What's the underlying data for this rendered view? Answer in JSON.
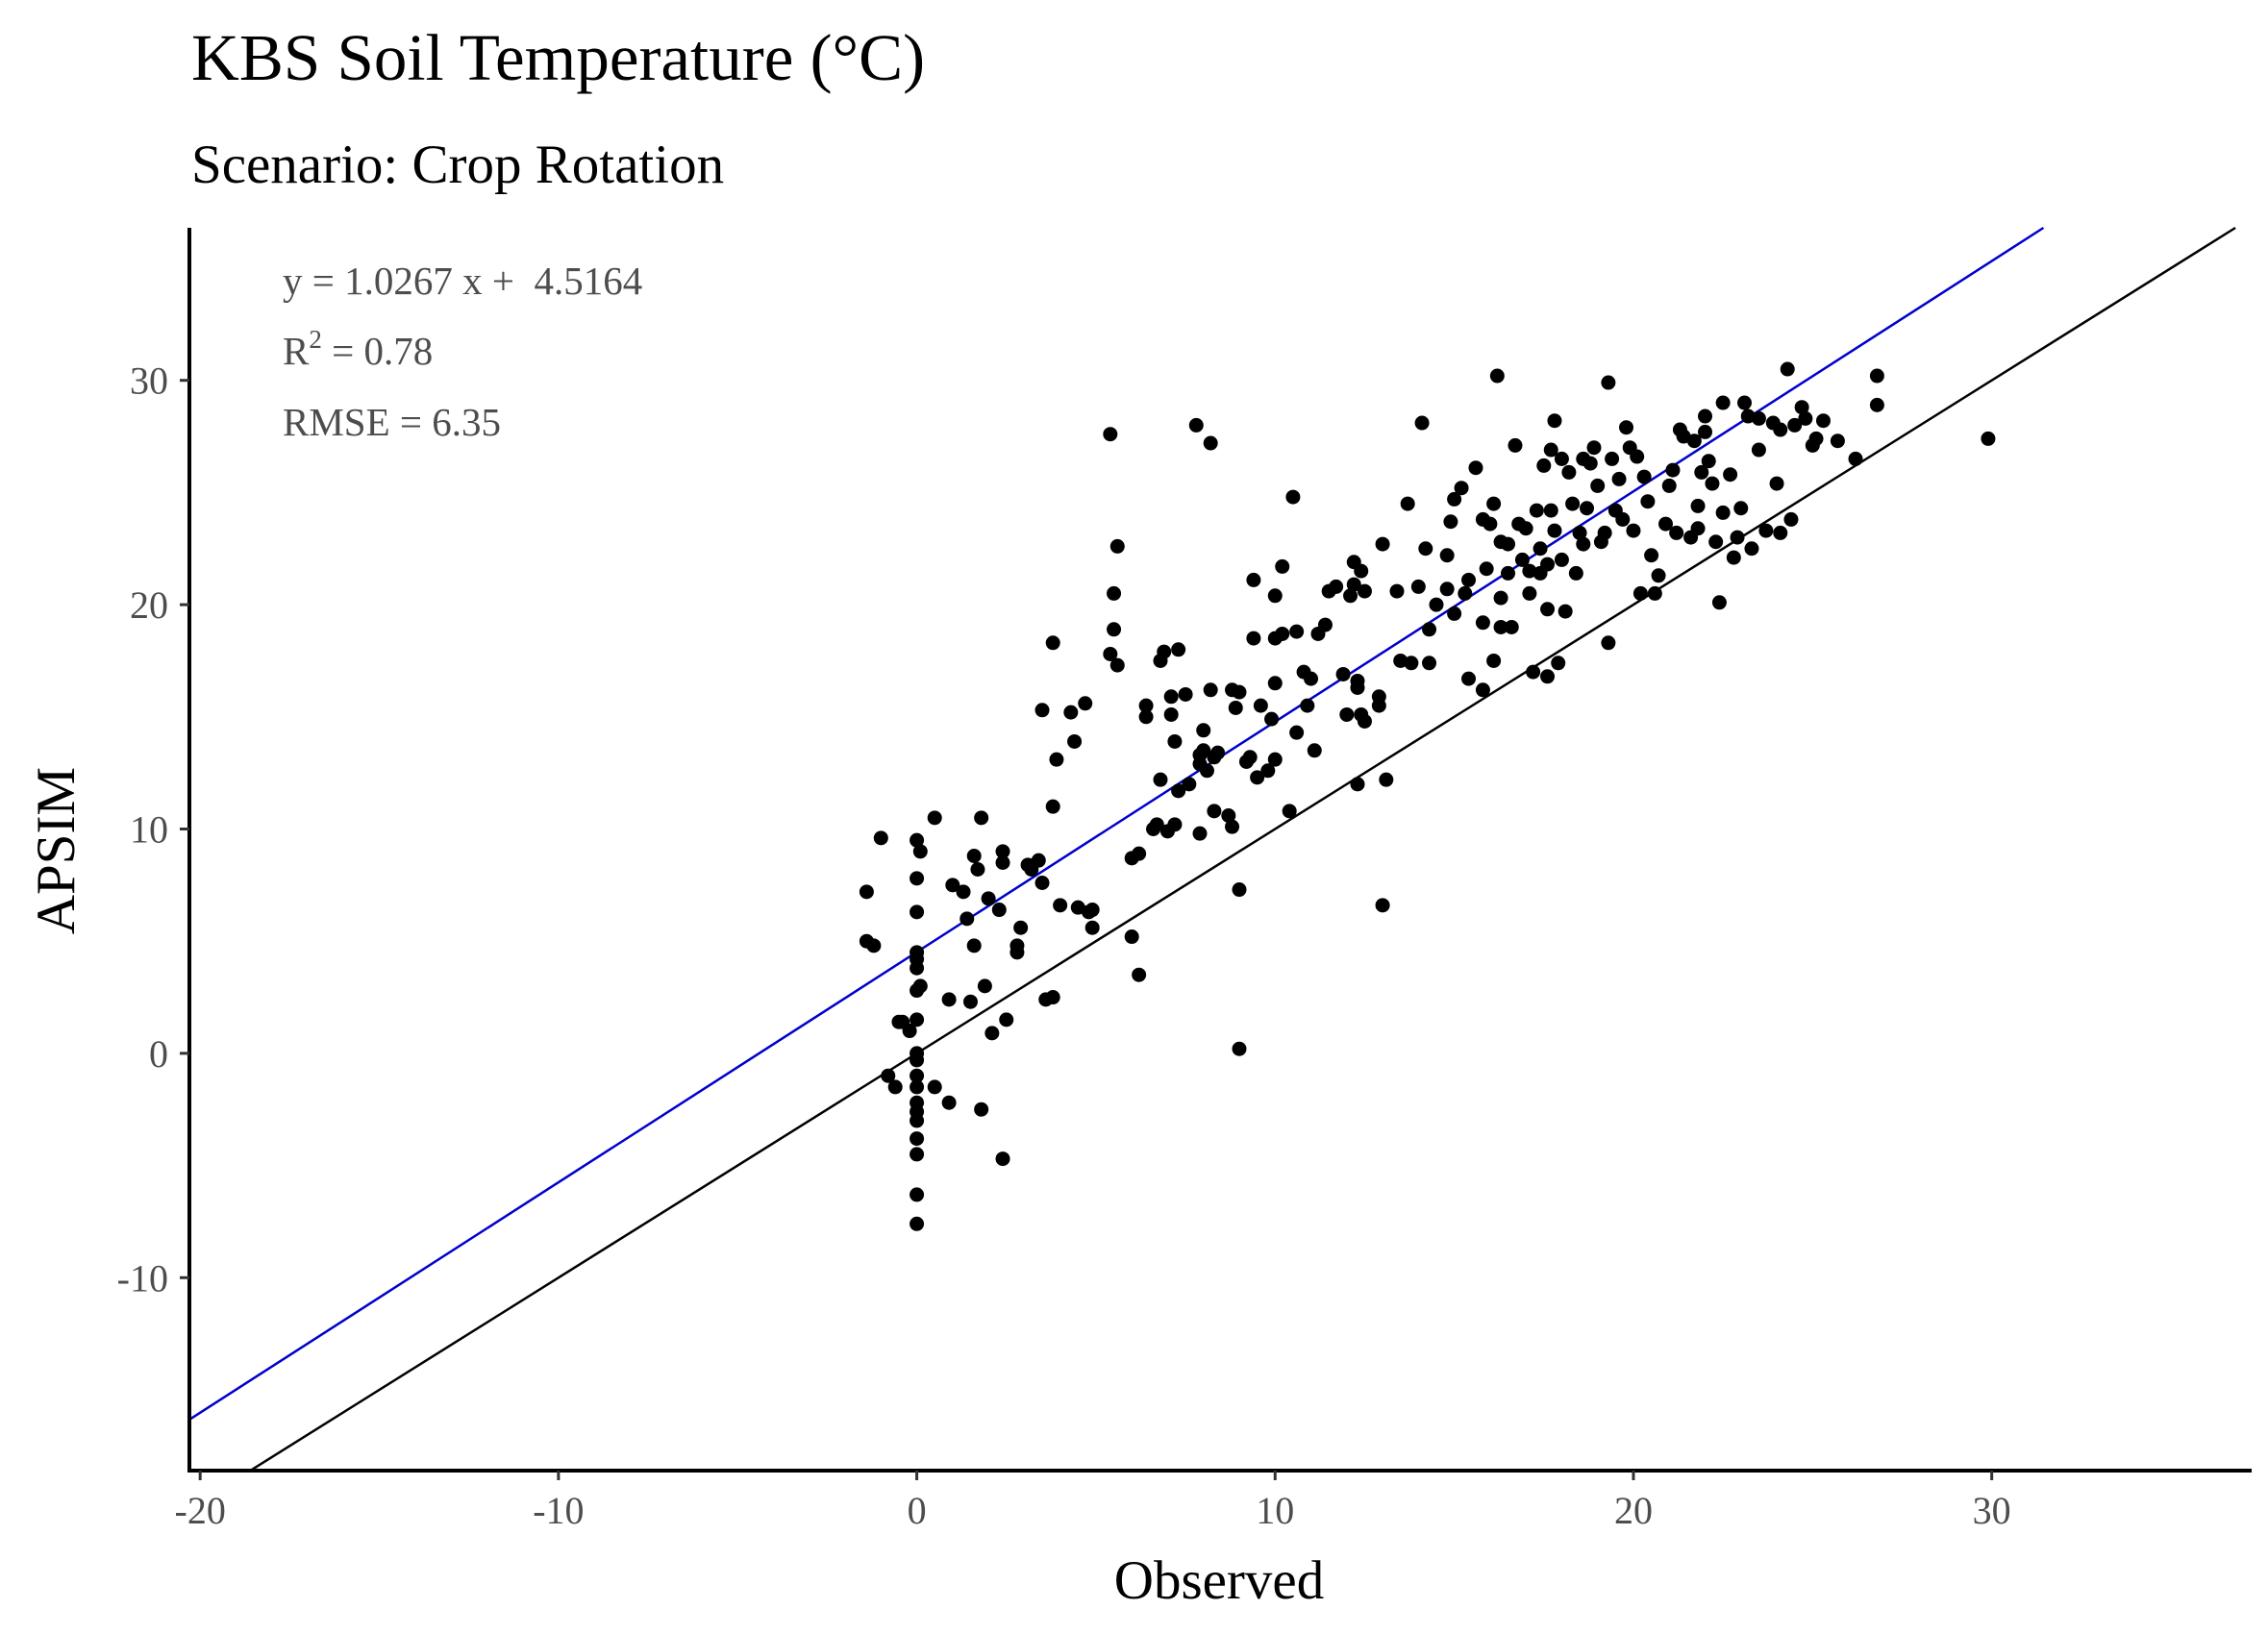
{
  "chart_data": {
    "type": "scatter",
    "title": "KBS Soil Temperature (°C)",
    "subtitle": "Scenario: Crop Rotation",
    "xlabel": "Observed",
    "ylabel": "APSIM",
    "xlim": [
      -20.3,
      37.2
    ],
    "ylim": [
      -18.6,
      36.8
    ],
    "x_ticks": [
      -20,
      -10,
      0,
      10,
      20,
      30
    ],
    "y_ticks": [
      -10,
      0,
      10,
      20,
      30
    ],
    "grid": false,
    "annotations": {
      "equation": "y = 1.0267 x +  4.5164",
      "r2_prefix": "R",
      "r2_sup": "2",
      "r2_suffix": " = 0.78",
      "rmse": "RMSE = 6.35"
    },
    "lines": [
      {
        "kind": "regression",
        "slope": 1.0267,
        "intercept": 4.5164,
        "color": "#0000cc"
      },
      {
        "kind": "identity",
        "slope": 1,
        "intercept": 0,
        "color": "#000000"
      }
    ],
    "point_color": "#000000",
    "points": [
      [
        -1.4,
        7.2
      ],
      [
        -1.4,
        5.0
      ],
      [
        -1.2,
        4.8
      ],
      [
        -1.0,
        9.6
      ],
      [
        -0.8,
        -1.0
      ],
      [
        -0.6,
        -1.5
      ],
      [
        -0.5,
        1.4
      ],
      [
        -0.4,
        1.4
      ],
      [
        -0.2,
        1.0
      ],
      [
        0,
        9.5
      ],
      [
        0,
        7.8
      ],
      [
        0,
        6.3
      ],
      [
        0,
        4.5
      ],
      [
        0,
        4.2
      ],
      [
        0,
        3.8
      ],
      [
        0,
        2.8
      ],
      [
        0,
        1.5
      ],
      [
        0,
        0
      ],
      [
        0,
        -0.3
      ],
      [
        0,
        -1.0
      ],
      [
        0,
        -1.5
      ],
      [
        0,
        -2.2
      ],
      [
        0,
        -2.6
      ],
      [
        0,
        -3.0
      ],
      [
        0,
        -3.8
      ],
      [
        0,
        -4.5
      ],
      [
        0,
        -6.3
      ],
      [
        0,
        -7.6
      ],
      [
        0.1,
        9.0
      ],
      [
        0.1,
        3.0
      ],
      [
        0.5,
        10.5
      ],
      [
        0.5,
        -1.5
      ],
      [
        0.9,
        -2.2
      ],
      [
        0.9,
        2.4
      ],
      [
        1.0,
        7.5
      ],
      [
        1.3,
        7.2
      ],
      [
        1.4,
        6.0
      ],
      [
        1.5,
        2.3
      ],
      [
        1.6,
        8.8
      ],
      [
        1.6,
        4.8
      ],
      [
        1.7,
        8.2
      ],
      [
        1.8,
        -2.5
      ],
      [
        1.8,
        10.5
      ],
      [
        1.9,
        3.0
      ],
      [
        2.0,
        6.9
      ],
      [
        2.1,
        0.9
      ],
      [
        2.3,
        6.4
      ],
      [
        2.4,
        9.0
      ],
      [
        2.4,
        8.5
      ],
      [
        2.4,
        -4.7
      ],
      [
        2.5,
        1.5
      ],
      [
        2.8,
        4.8
      ],
      [
        2.8,
        4.5
      ],
      [
        2.9,
        5.6
      ],
      [
        3.1,
        8.4
      ],
      [
        3.2,
        8.2
      ],
      [
        3.4,
        8.6
      ],
      [
        3.5,
        7.6
      ],
      [
        3.5,
        15.3
      ],
      [
        3.6,
        2.4
      ],
      [
        3.8,
        2.5
      ],
      [
        3.8,
        11.0
      ],
      [
        3.8,
        18.3
      ],
      [
        3.9,
        13.1
      ],
      [
        4.0,
        6.6
      ],
      [
        4.3,
        15.2
      ],
      [
        4.4,
        13.9
      ],
      [
        4.5,
        6.5
      ],
      [
        4.7,
        15.6
      ],
      [
        4.8,
        6.3
      ],
      [
        4.9,
        6.4
      ],
      [
        4.9,
        5.6
      ],
      [
        5.4,
        27.6
      ],
      [
        5.4,
        17.8
      ],
      [
        5.5,
        20.5
      ],
      [
        5.5,
        18.9
      ],
      [
        5.6,
        22.6
      ],
      [
        5.6,
        17.3
      ],
      [
        6.0,
        8.7
      ],
      [
        6.0,
        5.2
      ],
      [
        6.2,
        3.5
      ],
      [
        6.2,
        8.9
      ],
      [
        6.4,
        15.5
      ],
      [
        6.4,
        15.0
      ],
      [
        6.6,
        10.0
      ],
      [
        6.7,
        10.2
      ],
      [
        6.8,
        12.2
      ],
      [
        6.8,
        17.5
      ],
      [
        6.9,
        17.9
      ],
      [
        7.0,
        9.9
      ],
      [
        7.1,
        15.9
      ],
      [
        7.1,
        15.1
      ],
      [
        7.2,
        13.9
      ],
      [
        7.2,
        10.2
      ],
      [
        7.3,
        11.7
      ],
      [
        7.3,
        18.0
      ],
      [
        7.5,
        16.0
      ],
      [
        7.6,
        12.0
      ],
      [
        7.8,
        28.0
      ],
      [
        7.9,
        13.3
      ],
      [
        7.9,
        12.9
      ],
      [
        7.9,
        9.8
      ],
      [
        8.0,
        14.4
      ],
      [
        8.0,
        13.5
      ],
      [
        8.1,
        12.6
      ],
      [
        8.2,
        27.2
      ],
      [
        8.2,
        16.2
      ],
      [
        8.3,
        13.2
      ],
      [
        8.3,
        10.8
      ],
      [
        8.4,
        13.4
      ],
      [
        8.7,
        10.6
      ],
      [
        8.8,
        10.1
      ],
      [
        8.8,
        16.2
      ],
      [
        8.9,
        15.4
      ],
      [
        9.0,
        16.1
      ],
      [
        9.0,
        7.3
      ],
      [
        9.0,
        0.2
      ],
      [
        9.2,
        13.0
      ],
      [
        9.3,
        13.2
      ],
      [
        9.4,
        18.5
      ],
      [
        9.4,
        21.1
      ],
      [
        9.5,
        12.3
      ],
      [
        9.6,
        15.5
      ],
      [
        9.8,
        12.6
      ],
      [
        9.9,
        14.9
      ],
      [
        10.0,
        18.5
      ],
      [
        10.0,
        13.1
      ],
      [
        10.0,
        16.5
      ],
      [
        10.0,
        20.4
      ],
      [
        10.2,
        21.7
      ],
      [
        10.2,
        18.7
      ],
      [
        10.4,
        10.8
      ],
      [
        10.5,
        24.8
      ],
      [
        10.6,
        14.3
      ],
      [
        10.6,
        18.8
      ],
      [
        10.8,
        17.0
      ],
      [
        10.9,
        15.5
      ],
      [
        11.0,
        16.7
      ],
      [
        11.1,
        13.5
      ],
      [
        11.2,
        18.7
      ],
      [
        11.4,
        19.1
      ],
      [
        11.5,
        20.6
      ],
      [
        11.7,
        20.8
      ],
      [
        11.9,
        16.9
      ],
      [
        12.0,
        15.1
      ],
      [
        12.1,
        20.4
      ],
      [
        12.2,
        21.9
      ],
      [
        12.2,
        20.9
      ],
      [
        12.3,
        16.3
      ],
      [
        12.3,
        16.6
      ],
      [
        12.3,
        12.0
      ],
      [
        12.4,
        15.1
      ],
      [
        12.4,
        21.5
      ],
      [
        12.5,
        14.8
      ],
      [
        12.5,
        20.6
      ],
      [
        12.9,
        15.9
      ],
      [
        12.9,
        15.5
      ],
      [
        13.0,
        22.7
      ],
      [
        13.1,
        12.2
      ],
      [
        13.0,
        6.6
      ],
      [
        13.4,
        20.6
      ],
      [
        13.5,
        17.5
      ],
      [
        13.7,
        24.5
      ],
      [
        13.8,
        17.4
      ],
      [
        14.0,
        20.8
      ],
      [
        14.1,
        28.1
      ],
      [
        14.2,
        22.5
      ],
      [
        14.3,
        18.9
      ],
      [
        14.3,
        17.4
      ],
      [
        14.5,
        20.0
      ],
      [
        14.8,
        22.2
      ],
      [
        14.8,
        20.7
      ],
      [
        14.9,
        23.7
      ],
      [
        15.0,
        19.6
      ],
      [
        15.0,
        24.7
      ],
      [
        15.2,
        25.2
      ],
      [
        15.3,
        20.5
      ],
      [
        15.4,
        16.7
      ],
      [
        15.4,
        21.1
      ],
      [
        15.6,
        26.1
      ],
      [
        15.8,
        16.2
      ],
      [
        15.8,
        19.2
      ],
      [
        15.8,
        23.8
      ],
      [
        15.9,
        21.6
      ],
      [
        16.0,
        23.6
      ],
      [
        16.1,
        24.5
      ],
      [
        16.1,
        17.5
      ],
      [
        16.2,
        30.2
      ],
      [
        16.3,
        19.0
      ],
      [
        16.3,
        22.8
      ],
      [
        16.3,
        20.3
      ],
      [
        16.5,
        21.4
      ],
      [
        16.5,
        22.7
      ],
      [
        16.6,
        19.0
      ],
      [
        16.7,
        27.1
      ],
      [
        16.8,
        23.6
      ],
      [
        16.9,
        22.0
      ],
      [
        17.0,
        23.4
      ],
      [
        17.1,
        21.5
      ],
      [
        17.1,
        20.5
      ],
      [
        17.2,
        17.0
      ],
      [
        17.3,
        24.2
      ],
      [
        17.4,
        21.4
      ],
      [
        17.4,
        22.5
      ],
      [
        17.5,
        26.2
      ],
      [
        17.6,
        21.8
      ],
      [
        17.6,
        16.8
      ],
      [
        17.6,
        19.8
      ],
      [
        17.7,
        24.2
      ],
      [
        17.7,
        26.9
      ],
      [
        17.8,
        23.3
      ],
      [
        17.8,
        28.2
      ],
      [
        17.9,
        17.4
      ],
      [
        18.0,
        22.0
      ],
      [
        18.0,
        26.5
      ],
      [
        18.1,
        19.7
      ],
      [
        18.2,
        25.9
      ],
      [
        18.3,
        24.5
      ],
      [
        18.4,
        21.4
      ],
      [
        18.5,
        23.2
      ],
      [
        18.6,
        22.7
      ],
      [
        18.7,
        24.3
      ],
      [
        18.8,
        26.3
      ],
      [
        18.9,
        27.0
      ],
      [
        19.0,
        25.3
      ],
      [
        19.1,
        22.8
      ],
      [
        19.2,
        23.2
      ],
      [
        19.3,
        18.3
      ],
      [
        19.3,
        29.9
      ],
      [
        19.4,
        26.5
      ],
      [
        19.5,
        24.2
      ],
      [
        19.6,
        25.6
      ],
      [
        19.7,
        23.8
      ],
      [
        19.8,
        27.9
      ],
      [
        19.9,
        27.0
      ],
      [
        20.0,
        23.3
      ],
      [
        20.1,
        26.6
      ],
      [
        20.2,
        20.5
      ],
      [
        20.3,
        25.7
      ],
      [
        20.4,
        24.6
      ],
      [
        20.5,
        22.2
      ],
      [
        20.6,
        20.5
      ],
      [
        20.7,
        21.3
      ],
      [
        20.9,
        23.6
      ],
      [
        21.0,
        25.3
      ],
      [
        21.1,
        26.0
      ],
      [
        21.2,
        23.2
      ],
      [
        21.3,
        27.8
      ],
      [
        21.4,
        27.5
      ],
      [
        21.6,
        23.0
      ],
      [
        21.7,
        27.3
      ],
      [
        21.8,
        23.4
      ],
      [
        21.8,
        24.4
      ],
      [
        21.9,
        25.9
      ],
      [
        22.0,
        27.7
      ],
      [
        22.1,
        26.4
      ],
      [
        22.2,
        25.4
      ],
      [
        22.3,
        22.8
      ],
      [
        22.4,
        20.1
      ],
      [
        22.5,
        24.1
      ],
      [
        22.7,
        25.8
      ],
      [
        22.8,
        22.1
      ],
      [
        22.9,
        23.0
      ],
      [
        23.0,
        24.3
      ],
      [
        23.1,
        29.0
      ],
      [
        23.2,
        28.4
      ],
      [
        23.3,
        22.5
      ],
      [
        23.5,
        26.9
      ],
      [
        23.7,
        23.3
      ],
      [
        23.9,
        28.1
      ],
      [
        24.0,
        25.4
      ],
      [
        24.1,
        23.2
      ],
      [
        24.3,
        30.5
      ],
      [
        24.4,
        23.8
      ],
      [
        24.5,
        28.0
      ],
      [
        24.7,
        28.8
      ],
      [
        24.8,
        28.3
      ],
      [
        25.0,
        27.1
      ],
      [
        25.1,
        27.4
      ],
      [
        25.3,
        28.2
      ],
      [
        25.7,
        27.3
      ],
      [
        26.2,
        26.5
      ],
      [
        26.8,
        28.9
      ],
      [
        26.8,
        30.2
      ],
      [
        29.9,
        27.4
      ],
      [
        24.1,
        27.8
      ],
      [
        23.5,
        28.3
      ],
      [
        22.5,
        29.0
      ],
      [
        22.0,
        28.4
      ],
      [
        18.6,
        26.5
      ]
    ]
  }
}
